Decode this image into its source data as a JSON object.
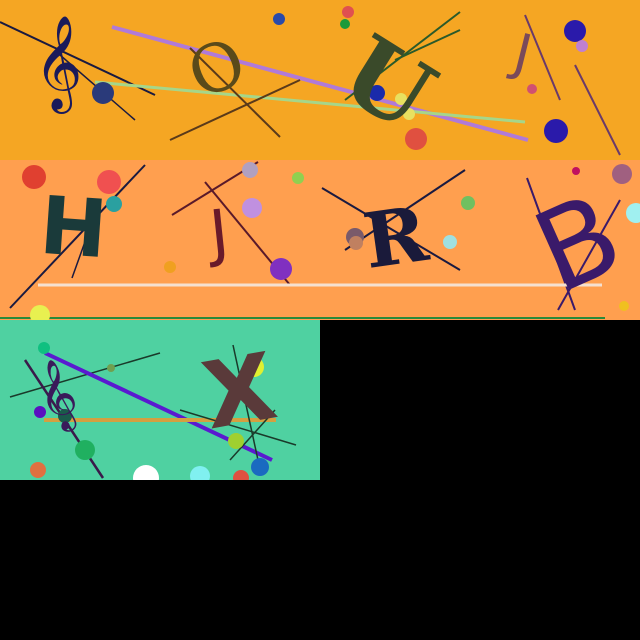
{
  "colors": {
    "panel_top": "#f5a623",
    "panel_middle": "#ff9f4f",
    "panel_bottom": "#4fd1a1",
    "background": "#000000"
  },
  "panels": [
    {
      "id": "captcha-top",
      "glyphs": [
        "𝄞",
        "O",
        "U",
        "J"
      ]
    },
    {
      "id": "captcha-middle",
      "glyphs": [
        "H",
        "J",
        "R",
        "B"
      ]
    },
    {
      "id": "captcha-bottom",
      "glyphs": [
        "𝄞",
        "X"
      ]
    }
  ]
}
